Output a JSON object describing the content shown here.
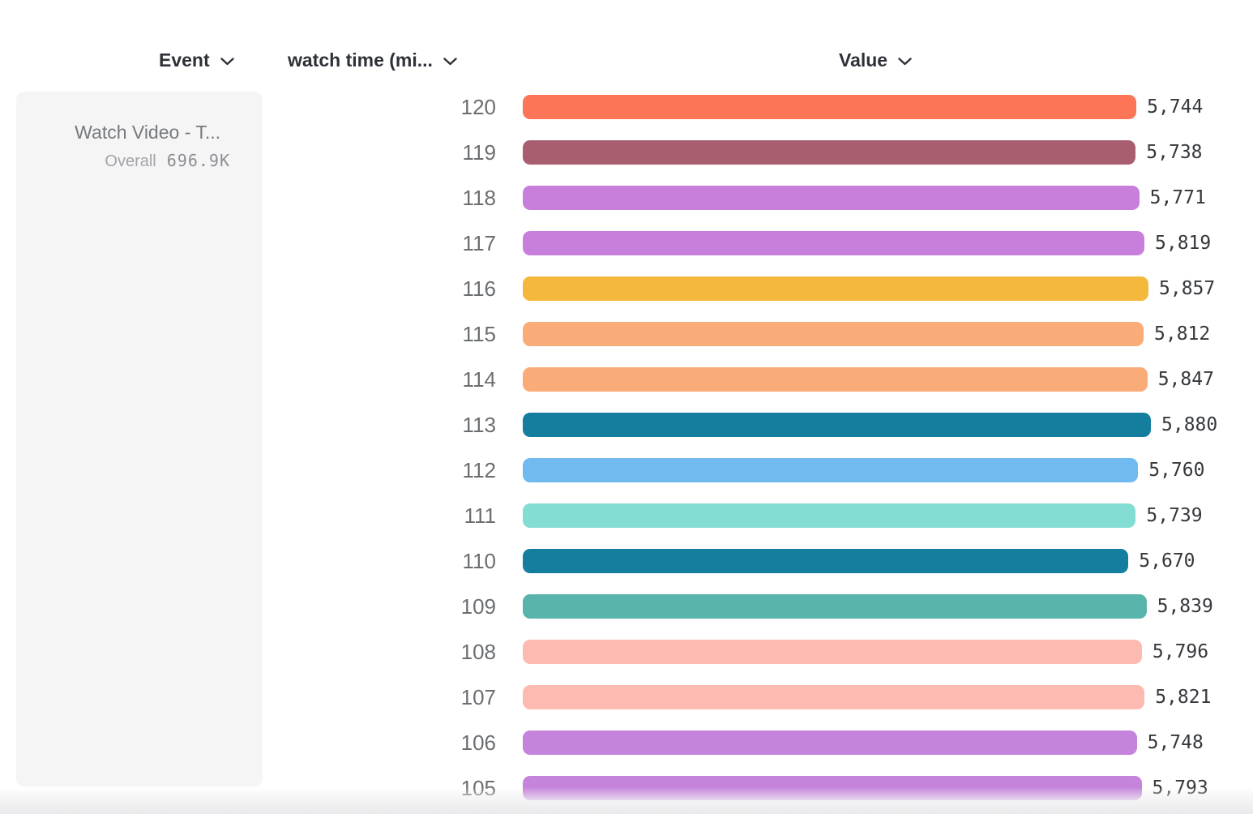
{
  "header": {
    "event_label": "Event",
    "metric_label": "watch time (mi...",
    "value_label": "Value"
  },
  "sidebar": {
    "event_name": "Watch Video - T...",
    "overall_label": "Overall",
    "overall_value": "696.9K"
  },
  "chart_data": {
    "type": "bar",
    "orientation": "horizontal",
    "title": "",
    "xlabel": "Value",
    "ylabel": "watch time (mi...)",
    "xlim": [
      0,
      5880
    ],
    "grid": false,
    "categories": [
      "120",
      "119",
      "118",
      "117",
      "116",
      "115",
      "114",
      "113",
      "112",
      "111",
      "110",
      "109",
      "108",
      "107",
      "106",
      "105"
    ],
    "values": [
      5744,
      5738,
      5771,
      5819,
      5857,
      5812,
      5847,
      5880,
      5760,
      5739,
      5670,
      5839,
      5796,
      5821,
      5748,
      5793
    ],
    "value_labels": [
      "5,744",
      "5,738",
      "5,771",
      "5,819",
      "5,857",
      "5,812",
      "5,847",
      "5,880",
      "5,760",
      "5,739",
      "5,670",
      "5,839",
      "5,796",
      "5,821",
      "5,748",
      "5,793"
    ],
    "colors": [
      "#FB7556",
      "#A95E70",
      "#C87FDC",
      "#C87FDC",
      "#F4B83C",
      "#FAAC78",
      "#FAAC78",
      "#157D9D",
      "#70BAF0",
      "#83DDD2",
      "#157D9D",
      "#59B4AC",
      "#FCBAB0",
      "#FCBAB0",
      "#C584DB",
      "#C584DB"
    ]
  },
  "colors": {
    "header_text": "#2e3238",
    "category_label": "#6b6e71",
    "value_label": "#35383c",
    "card_background": "#f5f5f6"
  }
}
